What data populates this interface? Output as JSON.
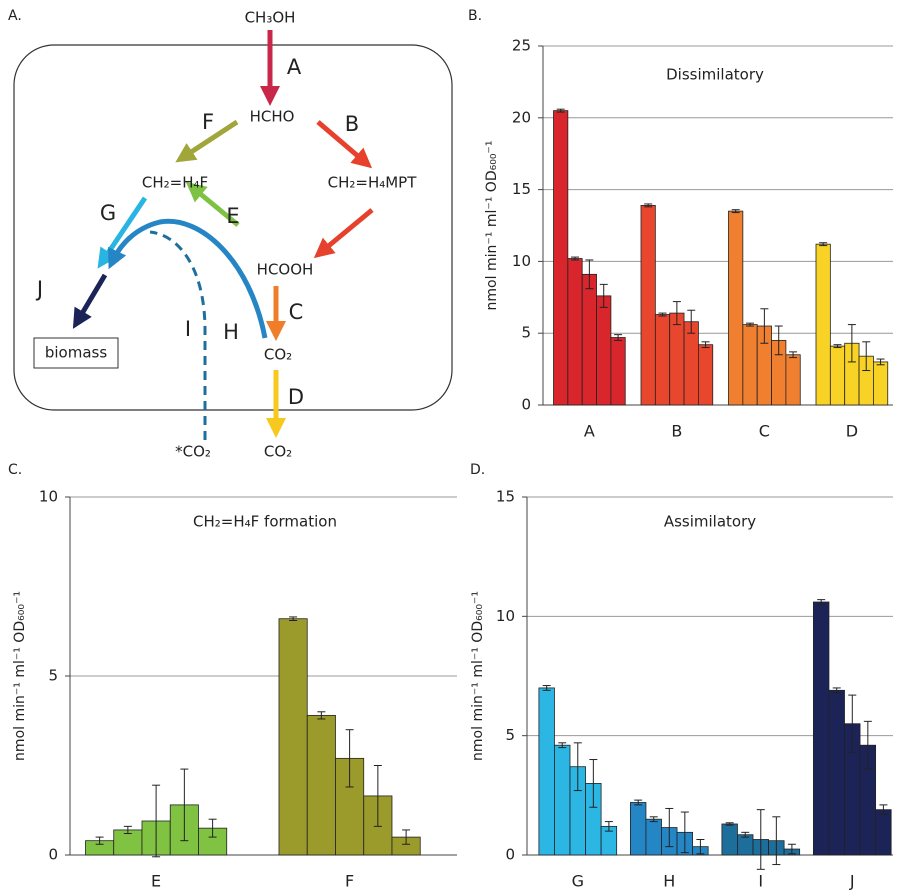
{
  "diagram": {
    "label": "A.",
    "nodes": [
      "CH₃OH",
      "HCHO",
      "CH₂=H₄F",
      "CH₂=H₄MPT",
      "HCOOH",
      "CO₂",
      "CO₂",
      "*CO₂",
      "biomass"
    ],
    "arrows": [
      "A",
      "B",
      "C",
      "D",
      "E",
      "F",
      "G",
      "H",
      "I",
      "J"
    ]
  },
  "chart_data": [
    {
      "type": "bar",
      "label": "B.",
      "title": "Dissimilatory",
      "ylabel": "nmol min⁻¹ ml⁻¹ OD₆₀₀⁻¹",
      "ylim": [
        0,
        25
      ],
      "yticks": [
        0,
        5,
        10,
        15,
        20,
        25
      ],
      "grid": true,
      "groups": [
        {
          "name": "A",
          "color": "#d8262c",
          "values": [
            20.5,
            10.2,
            9.1,
            7.6,
            4.7
          ],
          "errors": [
            0.1,
            0.1,
            1.0,
            0.8,
            0.2
          ]
        },
        {
          "name": "B",
          "color": "#e9462e",
          "values": [
            13.9,
            6.3,
            6.4,
            5.8,
            4.2
          ],
          "errors": [
            0.1,
            0.1,
            0.8,
            0.8,
            0.2
          ]
        },
        {
          "name": "C",
          "color": "#f08030",
          "values": [
            13.5,
            5.6,
            5.5,
            4.5,
            3.5
          ],
          "errors": [
            0.1,
            0.1,
            1.2,
            1.0,
            0.2
          ]
        },
        {
          "name": "D",
          "color": "#f8d224",
          "values": [
            11.2,
            4.1,
            4.3,
            3.4,
            3.0
          ],
          "errors": [
            0.1,
            0.1,
            1.3,
            1.0,
            0.2
          ]
        }
      ]
    },
    {
      "type": "bar",
      "label": "C.",
      "title": "CH₂=H₄F  formation",
      "ylabel": "nmol min⁻¹ ml⁻¹ OD₆₀₀⁻¹",
      "ylim": [
        0,
        10
      ],
      "yticks": [
        0,
        5,
        10
      ],
      "grid": true,
      "groups": [
        {
          "name": "E",
          "color": "#80c242",
          "values": [
            0.4,
            0.7,
            0.95,
            1.4,
            0.75
          ],
          "errors": [
            0.1,
            0.1,
            1.0,
            1.0,
            0.25
          ]
        },
        {
          "name": "F",
          "color": "#9b9b2c",
          "values": [
            6.6,
            3.9,
            2.7,
            1.65,
            0.5
          ],
          "errors": [
            0.05,
            0.1,
            0.8,
            0.85,
            0.2
          ]
        }
      ]
    },
    {
      "type": "bar",
      "label": "D.",
      "title": "Assimilatory",
      "ylabel": "nmol min⁻¹ ml⁻¹ OD₆₀₀⁻¹",
      "ylim": [
        0,
        15
      ],
      "yticks": [
        0,
        5,
        10,
        15
      ],
      "grid": true,
      "groups": [
        {
          "name": "G",
          "color": "#2bb6e4",
          "values": [
            7.0,
            4.6,
            3.7,
            3.0,
            1.2
          ],
          "errors": [
            0.1,
            0.1,
            1.0,
            1.0,
            0.2
          ]
        },
        {
          "name": "H",
          "color": "#2586c6",
          "values": [
            2.2,
            1.5,
            1.15,
            0.95,
            0.35
          ],
          "errors": [
            0.1,
            0.1,
            0.8,
            0.85,
            0.3
          ]
        },
        {
          "name": "I",
          "color": "#1e6e9c",
          "values": [
            1.3,
            0.85,
            0.65,
            0.6,
            0.25
          ],
          "errors": [
            0.05,
            0.1,
            1.25,
            1.0,
            0.2
          ]
        },
        {
          "name": "J",
          "color": "#1c2357",
          "values": [
            10.6,
            6.9,
            5.5,
            4.6,
            1.9
          ],
          "errors": [
            0.1,
            0.1,
            1.2,
            1.0,
            0.2
          ]
        }
      ]
    }
  ]
}
